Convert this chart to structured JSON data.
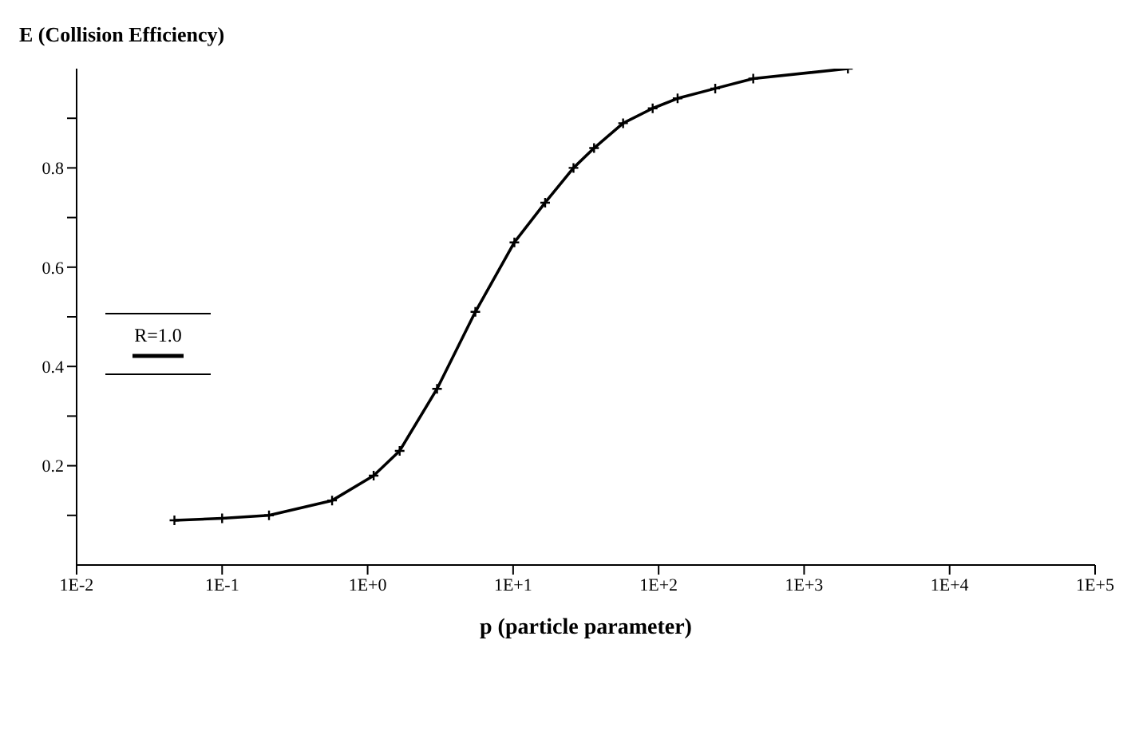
{
  "chart_data": {
    "type": "line",
    "ylabel": "E (Collision Efficiency)",
    "xlabel": "p (particle parameter)",
    "log": "x",
    "x": [
      0.047,
      0.1,
      0.21,
      0.57,
      1.1,
      1.66,
      3.0,
      5.5,
      10.2,
      16.6,
      26,
      36,
      57,
      91,
      135,
      245,
      447,
      2000
    ],
    "series": [
      {
        "name": "R=1.0",
        "color": "#000000",
        "values": [
          0.09,
          0.094,
          0.1,
          0.13,
          0.18,
          0.23,
          0.355,
          0.51,
          0.65,
          0.73,
          0.8,
          0.84,
          0.89,
          0.92,
          0.94,
          0.96,
          0.98,
          1.0
        ]
      }
    ],
    "xlim": [
      0.01,
      100000
    ],
    "xticks": [
      {
        "value": 0.01,
        "label": "1E-2"
      },
      {
        "value": 0.1,
        "label": "1E-1"
      },
      {
        "value": 1,
        "label": "1E+0"
      },
      {
        "value": 10,
        "label": "1E+1"
      },
      {
        "value": 100,
        "label": "1E+2"
      },
      {
        "value": 1000,
        "label": "1E+3"
      },
      {
        "value": 10000,
        "label": "1E+4"
      },
      {
        "value": 100000,
        "label": "1E+5"
      }
    ],
    "ylim": [
      0,
      1
    ],
    "yticks": [
      {
        "value": 0.1,
        "label": null
      },
      0.2,
      {
        "value": 0.3,
        "label": null
      },
      0.4,
      {
        "value": 0.5,
        "label": null
      },
      0.6,
      {
        "value": 0.7,
        "label": null
      },
      0.8,
      {
        "value": 0.9,
        "label": null
      }
    ],
    "grid": false,
    "legend": "left",
    "marker": "cross",
    "line_style": "solid"
  }
}
